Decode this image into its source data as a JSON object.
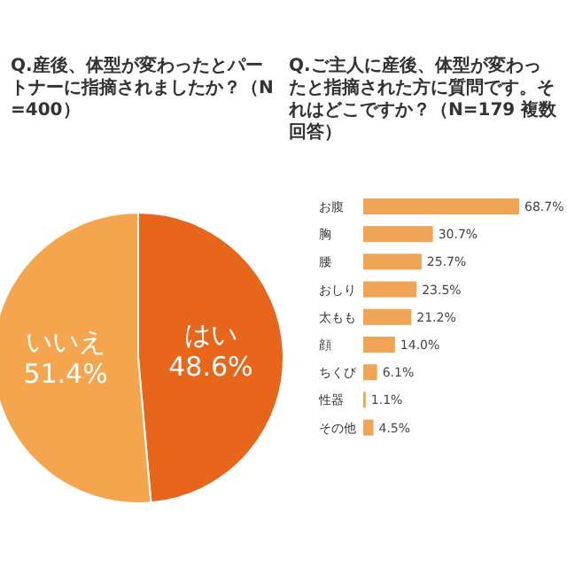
{
  "chart_data": [
    {
      "type": "pie",
      "title": "Q.産後、体型が変わったとパートナーに指摘されましたか？（N=400）",
      "categories": [
        "はい",
        "いいえ"
      ],
      "values": [
        48.6,
        51.4
      ],
      "colors": [
        "#e8661c",
        "#f5a54e"
      ],
      "value_labels": [
        "48.6%",
        "51.4%"
      ]
    },
    {
      "type": "bar",
      "orientation": "horizontal",
      "title": "Q.ご主人に産後、体型が変わったと指摘された方に質問です。それはどこですか？（N=179 複数回答）",
      "categories": [
        "お腹",
        "胸",
        "腰",
        "おしり",
        "太もも",
        "顔",
        "ちくび",
        "性器",
        "その他"
      ],
      "values": [
        68.7,
        30.7,
        25.7,
        23.5,
        21.2,
        14.0,
        6.1,
        1.1,
        4.5
      ],
      "color": "#f0a455",
      "value_labels": [
        "68.7%",
        "30.7%",
        "25.7%",
        "23.5%",
        "21.2%",
        "14.0%",
        "6.1%",
        "1.1%",
        "4.5%"
      ]
    }
  ]
}
